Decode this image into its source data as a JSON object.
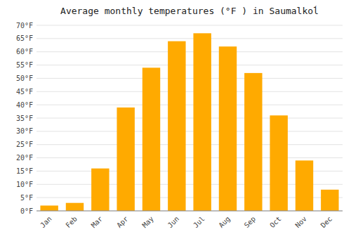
{
  "chart_data": {
    "type": "bar",
    "title": "Average monthly temperatures (°F ) in Saumalkoĺ",
    "categories": [
      "Jan",
      "Feb",
      "Mar",
      "Apr",
      "May",
      "Jun",
      "Jul",
      "Aug",
      "Sep",
      "Oct",
      "Nov",
      "Dec"
    ],
    "values": [
      2,
      3,
      16,
      39,
      54,
      64,
      67,
      62,
      52,
      36,
      19,
      8
    ],
    "color": "#FFAA00",
    "ylim": [
      0,
      70
    ],
    "yticks": [
      {
        "value": 0,
        "label": "0°F"
      },
      {
        "value": 5,
        "label": "5°F"
      },
      {
        "value": 10,
        "label": "10°F"
      },
      {
        "value": 15,
        "label": "15°F"
      },
      {
        "value": 20,
        "label": "20°F"
      },
      {
        "value": 25,
        "label": "25°F"
      },
      {
        "value": 30,
        "label": "30°F"
      },
      {
        "value": 35,
        "label": "35°F"
      },
      {
        "value": 40,
        "label": "40°F"
      },
      {
        "value": 45,
        "label": "45°F"
      },
      {
        "value": 50,
        "label": "50°F"
      },
      {
        "value": 55,
        "label": "55°F"
      },
      {
        "value": 60,
        "label": "60°F"
      },
      {
        "value": 65,
        "label": "65°F"
      },
      {
        "value": 70,
        "label": "70°F"
      }
    ],
    "grid": true
  }
}
